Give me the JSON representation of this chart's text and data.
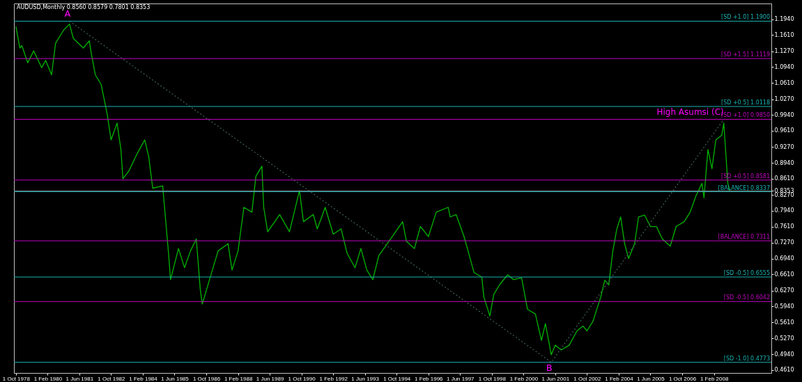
{
  "chart_data": {
    "type": "line",
    "title": "AUDUSD,Monthly  0.8560 0.8579 0.7801 0.8353",
    "x": [
      "1978-10",
      "1978-12",
      "1979-01",
      "1979-04",
      "1979-07",
      "1979-11",
      "1980-01",
      "1980-04",
      "1980-06",
      "1980-10",
      "1981-01",
      "1981-03",
      "1981-08",
      "1981-11",
      "1981-12",
      "1982-02",
      "1982-05",
      "1982-08",
      "1982-10",
      "1983-01",
      "1983-03",
      "1983-04",
      "1983-07",
      "1983-11",
      "1984-03",
      "1984-05",
      "1984-07",
      "1984-12",
      "1985-03",
      "1985-04",
      "1985-08",
      "1985-11",
      "1986-02",
      "1986-05",
      "1986-07",
      "1986-08",
      "1986-12",
      "1987-04",
      "1987-09",
      "1987-11",
      "1988-02",
      "1988-05",
      "1988-09",
      "1988-11",
      "1989-02",
      "1989-03",
      "1989-05",
      "1989-11",
      "1990-04",
      "1990-09",
      "1990-11",
      "1991-04",
      "1991-06",
      "1991-10",
      "1992-02",
      "1992-06",
      "1992-09",
      "1993-01",
      "1993-04",
      "1993-07",
      "1993-10",
      "1994-01",
      "1994-07",
      "1995-01",
      "1995-03",
      "1995-07",
      "1995-10",
      "1996-02",
      "1996-06",
      "1996-12",
      "1997-01",
      "1997-04",
      "1997-08",
      "1997-11",
      "1998-01",
      "1998-05",
      "1998-06",
      "1998-09",
      "1998-11",
      "1999-02",
      "1999-06",
      "1999-09",
      "2000-01",
      "2000-04",
      "2000-08",
      "2000-11",
      "2001-01",
      "2001-04",
      "2001-06",
      "2001-09",
      "2002-01",
      "2002-05",
      "2002-08",
      "2002-10",
      "2003-01",
      "2003-05",
      "2003-07",
      "2003-09",
      "2003-11",
      "2004-01",
      "2004-03",
      "2004-05",
      "2004-07",
      "2004-10",
      "2004-12",
      "2005-03",
      "2005-06",
      "2005-09",
      "2005-12",
      "2006-04",
      "2006-07",
      "2006-11",
      "2007-02",
      "2007-05",
      "2007-08",
      "2007-09",
      "2007-11",
      "2008-01",
      "2008-03",
      "2008-06",
      "2008-07",
      "2008-09",
      "2008-10"
    ],
    "series": [
      {
        "color": "#00b400",
        "values": [
          1.179,
          1.134,
          1.139,
          1.103,
          1.128,
          1.093,
          1.108,
          1.078,
          1.144,
          1.171,
          1.184,
          1.154,
          1.134,
          1.149,
          1.123,
          1.078,
          1.058,
          0.997,
          0.942,
          0.977,
          0.922,
          0.861,
          0.877,
          0.912,
          0.942,
          0.907,
          0.841,
          0.846,
          0.705,
          0.65,
          0.715,
          0.675,
          0.71,
          0.735,
          0.63,
          0.599,
          0.655,
          0.71,
          0.725,
          0.67,
          0.71,
          0.801,
          0.791,
          0.866,
          0.887,
          0.801,
          0.75,
          0.786,
          0.75,
          0.836,
          0.771,
          0.786,
          0.756,
          0.801,
          0.745,
          0.756,
          0.705,
          0.675,
          0.715,
          0.67,
          0.65,
          0.7,
          0.735,
          0.771,
          0.73,
          0.715,
          0.761,
          0.74,
          0.791,
          0.801,
          0.781,
          0.786,
          0.74,
          0.695,
          0.665,
          0.655,
          0.614,
          0.574,
          0.619,
          0.64,
          0.66,
          0.65,
          0.654,
          0.588,
          0.578,
          0.523,
          0.558,
          0.493,
          0.513,
          0.503,
          0.513,
          0.543,
          0.553,
          0.543,
          0.563,
          0.614,
          0.649,
          0.639,
          0.709,
          0.755,
          0.781,
          0.725,
          0.694,
          0.725,
          0.781,
          0.785,
          0.761,
          0.761,
          0.735,
          0.72,
          0.761,
          0.771,
          0.791,
          0.825,
          0.851,
          0.821,
          0.922,
          0.882,
          0.942,
          0.952,
          0.977,
          0.851,
          0.8353
        ]
      },
      {
        "type": "line",
        "color": "#3c5c52",
        "line_style": "dotted",
        "x": [
          "1981-01",
          "2001-04",
          "2008-07"
        ],
        "values": [
          1.19,
          0.4773,
          0.985
        ]
      }
    ],
    "xlim": [
      "1978-09",
      "2010-07"
    ],
    "xticks": [
      {
        "value": "1978-10",
        "label": "1 Oct 1978"
      },
      {
        "value": "1980-02",
        "label": "1 Feb 1980"
      },
      {
        "value": "1981-06",
        "label": "1 Jun 1981"
      },
      {
        "value": "1982-10",
        "label": "1 Oct 1982"
      },
      {
        "value": "1984-02",
        "label": "1 Feb 1984"
      },
      {
        "value": "1985-06",
        "label": "1 Jun 1985"
      },
      {
        "value": "1986-10",
        "label": "1 Oct 1986"
      },
      {
        "value": "1988-02",
        "label": "1 Feb 1988"
      },
      {
        "value": "1989-06",
        "label": "1 Jun 1989"
      },
      {
        "value": "1990-10",
        "label": "1 Oct 1990"
      },
      {
        "value": "1992-02",
        "label": "1 Feb 1992"
      },
      {
        "value": "1993-06",
        "label": "1 Jun 1993"
      },
      {
        "value": "1994-10",
        "label": "1 Oct 1994"
      },
      {
        "value": "1996-02",
        "label": "1 Feb 1996"
      },
      {
        "value": "1997-06",
        "label": "1 Jun 1997"
      },
      {
        "value": "1998-10",
        "label": "1 Oct 1998"
      },
      {
        "value": "2000-02",
        "label": "1 Feb 2000"
      },
      {
        "value": "2001-06",
        "label": "1 Jun 2001"
      },
      {
        "value": "2002-10",
        "label": "1 Oct 2002"
      },
      {
        "value": "2004-02",
        "label": "1 Feb 2004"
      },
      {
        "value": "2005-06",
        "label": "1 Jun 2005"
      },
      {
        "value": "2006-10",
        "label": "1 Oct 2006"
      },
      {
        "value": "2008-02",
        "label": "1 Feb 2008"
      }
    ],
    "ylim": [
      0.455,
      1.227
    ],
    "yticks": [
      {
        "value": 1.194,
        "label": "1.1940"
      },
      {
        "value": 1.161,
        "label": "1.1610"
      },
      {
        "value": 1.127,
        "label": "1.1270"
      },
      {
        "value": 1.094,
        "label": "1.0940"
      },
      {
        "value": 1.061,
        "label": "1.0610"
      },
      {
        "value": 1.027,
        "label": "1.0270"
      },
      {
        "value": 0.994,
        "label": "0.9940"
      },
      {
        "value": 0.961,
        "label": "0.9610"
      },
      {
        "value": 0.927,
        "label": "0.9270"
      },
      {
        "value": 0.894,
        "label": "0.8940"
      },
      {
        "value": 0.861,
        "label": "0.8610"
      },
      {
        "value": 0.8353,
        "label": "0.8353"
      },
      {
        "value": 0.827,
        "label": "0.8270"
      },
      {
        "value": 0.794,
        "label": "0.7940"
      },
      {
        "value": 0.761,
        "label": "0.7610"
      },
      {
        "value": 0.727,
        "label": "0.7270"
      },
      {
        "value": 0.694,
        "label": "0.6940"
      },
      {
        "value": 0.661,
        "label": "0.6610"
      },
      {
        "value": 0.627,
        "label": "0.6270"
      },
      {
        "value": 0.594,
        "label": "0.5940"
      },
      {
        "value": 0.561,
        "label": "0.5610"
      },
      {
        "value": 0.527,
        "label": "0.5270"
      },
      {
        "value": 0.494,
        "label": "0.4940"
      },
      {
        "value": 0.461,
        "label": "0.4610"
      }
    ],
    "ref_lines": [
      {
        "axis": "y",
        "value": 1.19,
        "label": "[SD +1.0] 1.1900",
        "color": "#1ab2b2"
      },
      {
        "axis": "y",
        "value": 1.1119,
        "label": "[SD +1.5] 1.1119",
        "color": "#c000c0"
      },
      {
        "axis": "y",
        "value": 1.0118,
        "label": "[SD +0.5] 1.0118",
        "color": "#1ab2b2"
      },
      {
        "axis": "y",
        "value": 0.985,
        "label": "[SD +1.0] 0.9850",
        "color": "#c000c0"
      },
      {
        "axis": "y",
        "value": 0.8581,
        "label": "[SD +0.5] 0.8581",
        "color": "#c000c0"
      },
      {
        "axis": "y",
        "value": 0.8353,
        "color": "#808080"
      },
      {
        "axis": "y",
        "value": 0.8337,
        "label": "[BALANCE] 0.8337",
        "color": "#1ab2b2"
      },
      {
        "axis": "y",
        "value": 0.7311,
        "label": "[BALANCE] 0.7311",
        "color": "#c000c0"
      },
      {
        "axis": "y",
        "value": 0.6555,
        "label": "[SD -0.5] 0.6555",
        "color": "#1ab2b2"
      },
      {
        "axis": "y",
        "value": 0.6042,
        "label": "[SD -0.5] 0.6042",
        "color": "#c000c0"
      },
      {
        "axis": "y",
        "value": 0.4773,
        "label": "[SD -1.0] 0.4773",
        "color": "#1ab2b2"
      }
    ],
    "annotations": [
      {
        "text": "A",
        "x": "1980-12",
        "y": 1.19
      },
      {
        "text": "B",
        "x": "2001-03",
        "y": 0.4773
      },
      {
        "text": "High Asumsi (C)",
        "x": "2008-07",
        "y": 0.985
      }
    ],
    "grid": false
  }
}
